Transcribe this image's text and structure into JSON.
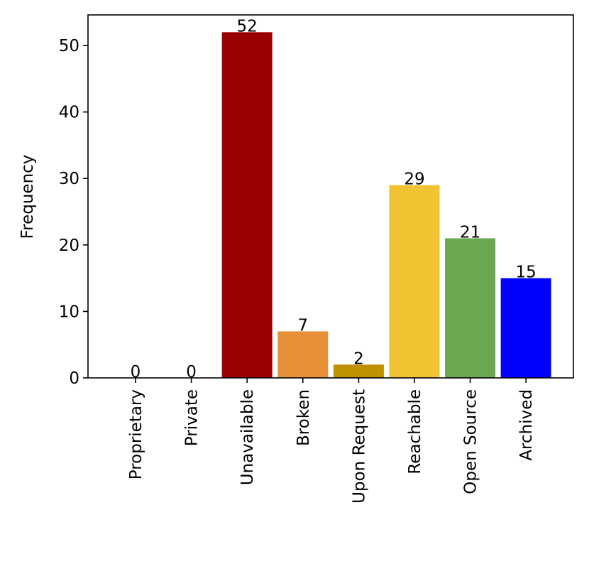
{
  "chart_data": {
    "type": "bar",
    "title": "",
    "xlabel": "",
    "ylabel": "Frequency",
    "categories": [
      "Proprietary",
      "Private",
      "Unavailable",
      "Broken",
      "Upon Request",
      "Reachable",
      "Open Source",
      "Archived"
    ],
    "values": [
      0,
      0,
      52,
      7,
      2,
      29,
      21,
      15
    ],
    "colors": [
      "#990000",
      "#990000",
      "#990000",
      "#e69138",
      "#bf9000",
      "#f1c232",
      "#6aa84f",
      "#0000ff"
    ],
    "data_labels": [
      "0",
      "0",
      "52",
      "7",
      "2",
      "29",
      "21",
      "15"
    ],
    "ylim": [
      0,
      54.6
    ],
    "yticks": [
      0,
      10,
      20,
      30,
      40,
      50
    ],
    "ytick_labels": [
      "0",
      "10",
      "20",
      "30",
      "40",
      "50"
    ],
    "grid": false,
    "legend": false
  }
}
